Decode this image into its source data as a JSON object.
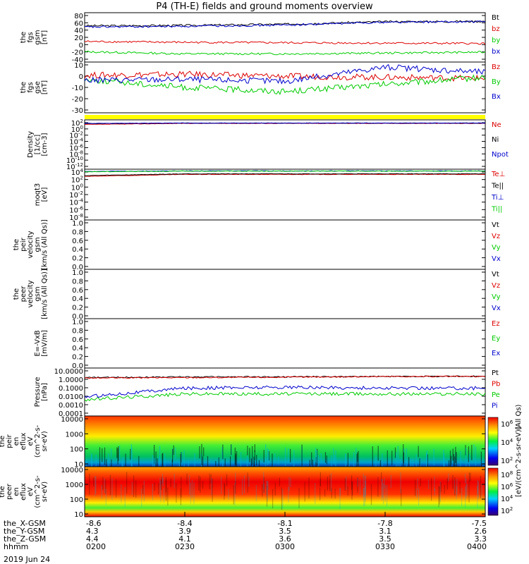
{
  "title": "P4 (TH-E) fields and ground moments overview",
  "date_label": "2019 Jun 24",
  "colors": {
    "black": "#000000",
    "red": "#dd0000",
    "green": "#00cc00",
    "blue": "#0000cc",
    "yellow": "#ffff00"
  },
  "colorbar_label": "[eV/(cm^2-s-sr-eV)]",
  "colorbar_label_ion": "(All Qs)",
  "panels": [
    {
      "id": "fgs-gsm",
      "ylabel_lines": [
        "the",
        "fgs",
        "gsm",
        "[nT]"
      ],
      "ylim": [
        -40,
        80
      ],
      "ticks": [
        "80",
        "60",
        "40",
        "20",
        "0",
        "-20",
        "-40"
      ],
      "legend": [
        {
          "text": "Bt",
          "color": "black"
        },
        {
          "text": "bz",
          "color": "red"
        },
        {
          "text": "by",
          "color": "green"
        },
        {
          "text": "bx",
          "color": "blue"
        }
      ]
    },
    {
      "id": "fgs-gse",
      "ylabel_lines": [
        "the",
        "fgs",
        "gse",
        "[nT]"
      ],
      "ylim": [
        -35,
        15
      ],
      "ticks": [
        "10",
        "0",
        "-10",
        "-20",
        "-30"
      ],
      "legend": [
        {
          "text": "Bz",
          "color": "red"
        },
        {
          "text": "By",
          "color": "green"
        },
        {
          "text": "Bx",
          "color": "blue"
        }
      ]
    },
    {
      "id": "density",
      "ylabel_lines": [
        "Density",
        "[1/cc]",
        "[cm-3]"
      ],
      "ticks": [
        "10^2",
        "10^0",
        "10^-2",
        "10^-4",
        "10^-6",
        "10^-8",
        "10^-10",
        "10^-12"
      ],
      "legend": [
        {
          "text": "Ne",
          "color": "red"
        },
        {
          "text": "Ni",
          "color": "black"
        },
        {
          "text": "Npot",
          "color": "blue"
        }
      ]
    },
    {
      "id": "temperature",
      "ylabel_lines": [
        "moqt3",
        "[eV]"
      ],
      "ticks": [
        "10^4",
        "10^2",
        "10^0",
        "10^-2",
        "10^-4",
        "10^-6",
        "10^-8"
      ],
      "legend": [
        {
          "text": "Te⊥",
          "color": "red"
        },
        {
          "text": "Te||",
          "color": "black"
        },
        {
          "text": "Ti⊥",
          "color": "blue"
        },
        {
          "text": "Ti||",
          "color": "green"
        }
      ]
    },
    {
      "id": "peir-velocity",
      "ylabel_lines": [
        "the",
        "peir",
        "velocity",
        "gsm",
        "[km/s (All Qs)]"
      ],
      "ylim": [
        0,
        1
      ],
      "ticks": [
        "1.0",
        "0.8",
        "0.6",
        "0.4",
        "0.2",
        "0.0"
      ],
      "legend": [
        {
          "text": "Vt",
          "color": "black"
        },
        {
          "text": "Vz",
          "color": "red"
        },
        {
          "text": "Vy",
          "color": "green"
        },
        {
          "text": "Vx",
          "color": "blue"
        }
      ]
    },
    {
      "id": "peer-velocity",
      "ylabel_lines": [
        "the",
        "peer",
        "velocity",
        "gsm",
        "[km/s (All Qs)]"
      ],
      "ylim": [
        0,
        1
      ],
      "ticks": [
        "1.0",
        "0.8",
        "0.6",
        "0.4",
        "0.2",
        "0.0"
      ],
      "legend": [
        {
          "text": "Vt",
          "color": "black"
        },
        {
          "text": "Vz",
          "color": "red"
        },
        {
          "text": "Vy",
          "color": "green"
        },
        {
          "text": "Vx",
          "color": "blue"
        }
      ]
    },
    {
      "id": "efield",
      "ylabel_lines": [
        "E=-VxB",
        "[mV/m]"
      ],
      "ylim": [
        0,
        1
      ],
      "ticks": [
        "1.0",
        "0.8",
        "0.6",
        "0.4",
        "0.2",
        "0.0"
      ],
      "legend": [
        {
          "text": "Ez",
          "color": "red"
        },
        {
          "text": "Ey",
          "color": "green"
        },
        {
          "text": "Ex",
          "color": "blue"
        }
      ]
    },
    {
      "id": "pressure",
      "ylabel_lines": [
        "Pressure",
        "[nPa]"
      ],
      "ticks": [
        "10.0000",
        "1.0000",
        "0.1000",
        "0.0100",
        "0.0010",
        "0.0001"
      ],
      "legend": [
        {
          "text": "Pt",
          "color": "black"
        },
        {
          "text": "Pb",
          "color": "red"
        },
        {
          "text": "Pe",
          "color": "green"
        },
        {
          "text": "Pi",
          "color": "blue"
        }
      ]
    },
    {
      "id": "peir-eflux",
      "ylabel_lines": [
        "the",
        "peir",
        "en",
        "eflux",
        "eV",
        "(cm^2-s-",
        "sr-eV)"
      ],
      "ticks": [
        "10000",
        "1000",
        "100",
        "10"
      ],
      "cbar_ticks": [
        "10^6",
        "10^4",
        "10^2"
      ]
    },
    {
      "id": "peer-eflux",
      "ylabel_lines": [
        "the",
        "peer",
        "en",
        "eflux",
        "eV",
        "(cm^2-s-",
        "sr-eV)"
      ],
      "ticks": [
        "10000",
        "1000",
        "100",
        "10"
      ],
      "cbar_ticks": [
        "10^8",
        "10^6",
        "10^4",
        "10^2"
      ]
    }
  ],
  "x_axis": {
    "row_labels": [
      "the_X-GSM",
      "the_Y-GSM",
      "the_Z-GSM",
      "hhmm"
    ],
    "columns": [
      [
        "-8.6",
        "4.3",
        "4.4",
        "0200"
      ],
      [
        "-8.4",
        "3.9",
        "4.1",
        "0230"
      ],
      [
        "-8.1",
        "3.5",
        "3.6",
        "0300"
      ],
      [
        "-7.8",
        "3.1",
        "3.5",
        "0330"
      ],
      [
        "-7.5",
        "2.6",
        "3.3",
        "0400"
      ]
    ]
  },
  "chart_data": [
    {
      "type": "line",
      "title": "",
      "ylabel": "the fgs gsm [nT]",
      "ylim": [
        -40,
        80
      ],
      "x": [
        "0200",
        "0230",
        "0300",
        "0330",
        "0400"
      ],
      "series": [
        {
          "name": "Bt",
          "color": "#000000",
          "values": [
            48,
            49,
            52,
            58,
            59
          ]
        },
        {
          "name": "bz",
          "color": "#dd0000",
          "values": [
            10,
            8,
            7,
            6,
            5
          ]
        },
        {
          "name": "by",
          "color": "#00cc00",
          "values": [
            -15,
            -20,
            -20,
            -18,
            -16
          ]
        },
        {
          "name": "bx",
          "color": "#0000cc",
          "values": [
            45,
            47,
            50,
            57,
            58
          ]
        }
      ]
    },
    {
      "type": "line",
      "title": "",
      "ylabel": "the fgs gse [nT]",
      "ylim": [
        -35,
        15
      ],
      "x": [
        "0200",
        "0230",
        "0300",
        "0330",
        "0400"
      ],
      "series": [
        {
          "name": "Bz",
          "color": "#dd0000",
          "values": [
            2,
            3,
            1,
            0,
            -1
          ]
        },
        {
          "name": "By",
          "color": "#00cc00",
          "values": [
            -2,
            -10,
            -14,
            -7,
            0
          ]
        },
        {
          "name": "Bx",
          "color": "#0000cc",
          "values": [
            -3,
            -2,
            -4,
            10,
            5
          ]
        }
      ]
    },
    {
      "type": "line",
      "title": "",
      "ylabel": "Density [1/cc] [cm-3]",
      "ylim": [
        1e-12,
        100
      ],
      "log": true,
      "x": [
        "0200",
        "0230",
        "0300",
        "0330",
        "0400"
      ],
      "series": [
        {
          "name": "Ne",
          "color": "#dd0000",
          "values": [
            5,
            10,
            10,
            10,
            10
          ]
        },
        {
          "name": "Ni",
          "color": "#000000",
          "values": [
            8,
            12,
            12,
            12,
            12
          ]
        },
        {
          "name": "Npot",
          "color": "#0000cc",
          "values": [
            10,
            12,
            12,
            12,
            12
          ]
        }
      ]
    },
    {
      "type": "line",
      "title": "",
      "ylabel": "moqt3 [eV]",
      "ylim": [
        1e-08,
        10000
      ],
      "log": true,
      "x": [
        "0200",
        "0230",
        "0300",
        "0330",
        "0400"
      ],
      "series": [
        {
          "name": "Te⊥",
          "color": "#dd0000",
          "values": [
            200,
            600,
            600,
            600,
            600
          ]
        },
        {
          "name": "Te||",
          "color": "#000000",
          "values": [
            300,
            800,
            800,
            800,
            800
          ]
        },
        {
          "name": "Ti⊥",
          "color": "#0000cc",
          "values": [
            3000,
            4000,
            4000,
            4000,
            4000
          ]
        },
        {
          "name": "Ti||",
          "color": "#00cc00",
          "values": [
            2500,
            3500,
            3500,
            3500,
            3500
          ]
        }
      ]
    },
    {
      "type": "line",
      "title": "",
      "ylabel": "the peir velocity gsm [km/s (All Qs)]",
      "ylim": [
        0,
        1
      ],
      "series": []
    },
    {
      "type": "line",
      "title": "",
      "ylabel": "the peer velocity gsm [km/s (All Qs)]",
      "ylim": [
        0,
        1
      ],
      "series": []
    },
    {
      "type": "line",
      "title": "",
      "ylabel": "E=-VxB [mV/m]",
      "ylim": [
        0,
        1
      ],
      "series": []
    },
    {
      "type": "line",
      "title": "",
      "ylabel": "Pressure [nPa]",
      "ylim": [
        0.0001,
        10
      ],
      "log": true,
      "x": [
        "0200",
        "0230",
        "0300",
        "0330",
        "0400"
      ],
      "series": [
        {
          "name": "Pt",
          "color": "#000000",
          "values": [
            1.0,
            1.2,
            1.2,
            1.3,
            1.4
          ]
        },
        {
          "name": "Pb",
          "color": "#dd0000",
          "values": [
            0.9,
            1.0,
            1.1,
            1.3,
            1.3
          ]
        },
        {
          "name": "Pe",
          "color": "#00cc00",
          "values": [
            0.005,
            0.02,
            0.02,
            0.02,
            0.02
          ]
        },
        {
          "name": "Pi",
          "color": "#0000cc",
          "values": [
            0.01,
            0.08,
            0.1,
            0.08,
            0.08
          ]
        }
      ]
    },
    {
      "type": "heatmap",
      "title": "",
      "ylabel": "the peir en eflux eV (cm^2-s-sr-eV)",
      "ylim": [
        5,
        25000
      ],
      "log": true,
      "x": [
        "0200",
        "0230",
        "0300",
        "0330",
        "0400"
      ],
      "colorbar": [
        "10^2",
        "10^4",
        "10^6"
      ]
    },
    {
      "type": "heatmap",
      "title": "",
      "ylabel": "the peer en eflux eV (cm^2-s-sr-eV)",
      "ylim": [
        5,
        25000
      ],
      "log": true,
      "x": [
        "0200",
        "0230",
        "0300",
        "0330",
        "0400"
      ],
      "colorbar": [
        "10^2",
        "10^4",
        "10^6",
        "10^8"
      ]
    }
  ]
}
